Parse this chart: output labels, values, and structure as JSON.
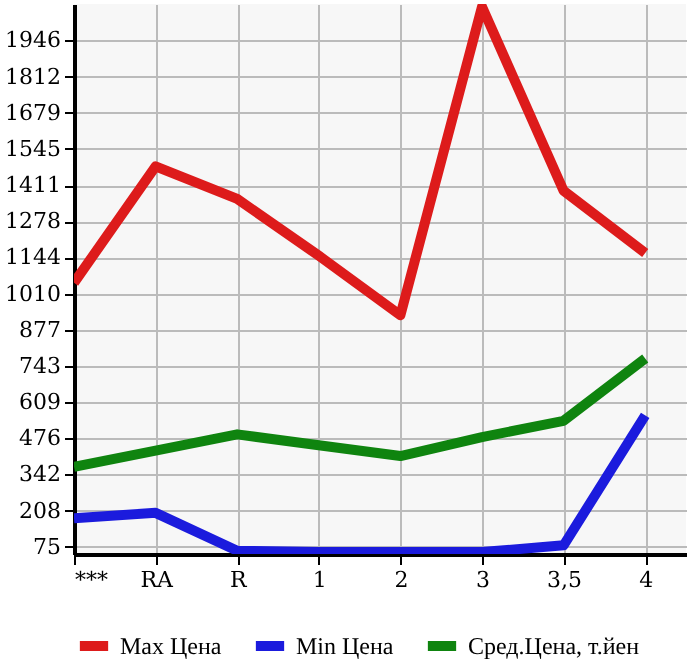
{
  "chart_data": {
    "type": "line",
    "categories": [
      "***",
      "RA",
      "R",
      "1",
      "2",
      "3",
      "3,5",
      "4"
    ],
    "series": [
      {
        "name": "Max Цена",
        "color": "#dd1b1b",
        "values": [
          1050,
          1480,
          1360,
          1150,
          930,
          2070,
          1390,
          1160
        ]
      },
      {
        "name": "Min Цена",
        "color": "#1b1bdd",
        "values": [
          180,
          200,
          60,
          55,
          55,
          55,
          80,
          560
        ]
      },
      {
        "name": "Сред.Цена, т.йен",
        "color": "#0f840f",
        "values": [
          370,
          430,
          490,
          450,
          410,
          480,
          540,
          770
        ]
      }
    ],
    "ylim": [
      48,
      2080
    ],
    "yticks": [
      75,
      208,
      342,
      476,
      609,
      743,
      877,
      1010,
      1144,
      1278,
      1411,
      1545,
      1679,
      1812,
      1946
    ],
    "grid": true,
    "legend": "bottom",
    "marker": "none",
    "line_style": "solid"
  }
}
